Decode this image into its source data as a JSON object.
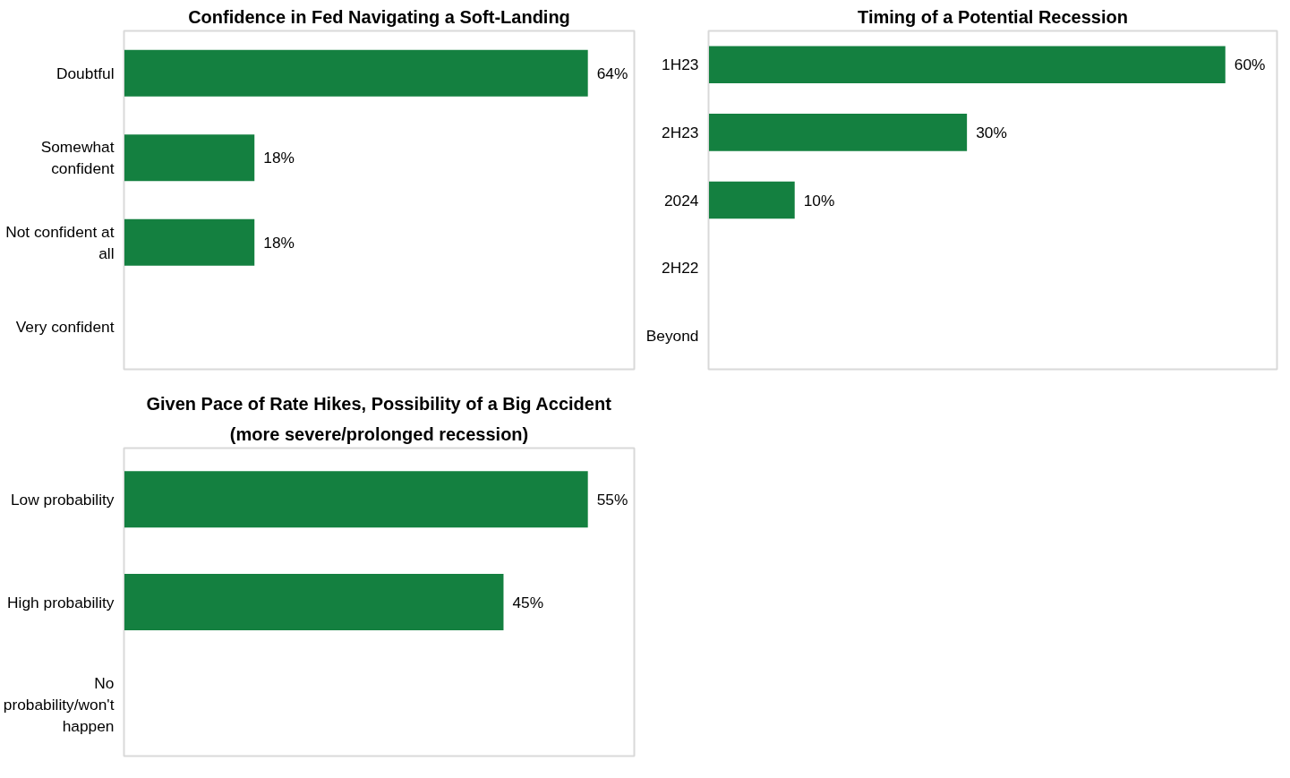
{
  "chart_data": [
    {
      "type": "bar",
      "orientation": "horizontal",
      "title": "Confidence in Fed Navigating a Soft-Landing",
      "categories": [
        "Doubtful",
        "Somewhat confident",
        "Not confident at all",
        "Very confident"
      ],
      "values": [
        64,
        18,
        18,
        0
      ],
      "value_labels": [
        "64%",
        "18%",
        "18%",
        null
      ],
      "color": "#148040",
      "grid": false
    },
    {
      "type": "bar",
      "orientation": "horizontal",
      "title": "Timing of a Potential Recession",
      "categories": [
        "1H23",
        "2H23",
        "2024",
        "2H22",
        "Beyond"
      ],
      "values": [
        60,
        30,
        10,
        0,
        0
      ],
      "value_labels": [
        "60%",
        "30%",
        "10%",
        null,
        null
      ],
      "color": "#148040",
      "grid": false
    },
    {
      "type": "bar",
      "orientation": "horizontal",
      "title": "Given Pace of Rate Hikes, Possibility of a Big Accident",
      "subtitle": "(more severe/prolonged recession)",
      "categories": [
        "Low probability",
        "High probability",
        "No probability/won't happen"
      ],
      "values": [
        55,
        45,
        0
      ],
      "value_labels": [
        "55%",
        "45%",
        null
      ],
      "color": "#148040",
      "grid": false
    }
  ]
}
